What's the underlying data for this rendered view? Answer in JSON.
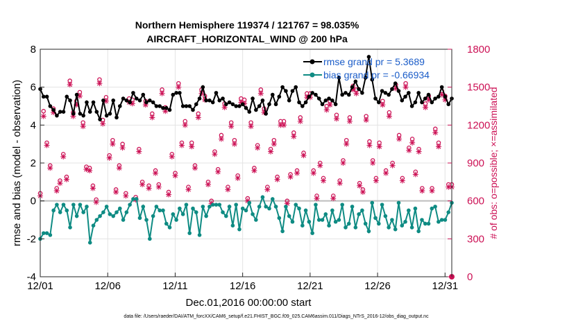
{
  "chart_data": {
    "type": "line",
    "title": "Northern Hemisphere 119374 / 121767 = 98.035%",
    "subtitle": "AIRCRAFT_HORIZONTAL_WIND @ 200 hPa",
    "xlabel": "Dec.01,2016 00:00:00 start",
    "ylabel": "rmse and bias (model - observation)",
    "ylabel_right": "# of obs: o=possible; ×=assimilated",
    "xlim": [
      1,
      31.5
    ],
    "ylim": [
      -4,
      8
    ],
    "ylim_right": [
      0,
      1800
    ],
    "x_ticks": [
      "12/01",
      "12/06",
      "12/11",
      "12/16",
      "12/21",
      "12/26",
      "12/31"
    ],
    "y_ticks": [
      "-4",
      "-2",
      "0",
      "2",
      "4",
      "6",
      "8"
    ],
    "y_ticks_right": [
      "0",
      "300",
      "600",
      "900",
      "1200",
      "1500",
      "1800"
    ],
    "grid": true,
    "legend_position": "top-right",
    "series": [
      {
        "name": "rmse grand pr = 5.3689",
        "color": "#000000",
        "values": [
          5.9,
          5.5,
          5.5,
          5.0,
          4.8,
          4.5,
          4.7,
          4.7,
          5.5,
          5.3,
          4.6,
          5.6,
          4.6,
          4.5,
          5.2,
          4.7,
          5.2,
          4.7,
          4.3,
          5.3,
          4.5,
          4.6,
          5.3,
          4.4,
          5.0,
          5.4,
          5.3,
          5.2,
          5.7,
          5.4,
          5.3,
          5.6,
          5.2,
          5.3,
          5.2,
          5.0,
          5.0,
          4.9,
          4.9,
          4.8,
          5.6,
          5.7,
          5.7,
          5.0,
          5.0,
          5.0,
          4.8,
          5.1,
          5.4,
          6.0,
          5.3,
          5.3,
          5.2,
          5.7,
          5.3,
          5.4,
          5.1,
          5.2,
          5.1,
          5.0,
          5.0,
          5.1,
          4.9,
          4.7,
          5.4,
          4.8,
          5.0,
          5.3,
          4.6,
          5.1,
          5.6,
          5.1,
          5.5,
          6.0,
          5.8,
          5.3,
          5.8,
          6.0,
          5.2,
          5.0,
          5.2,
          5.5,
          5.7,
          5.6,
          5.4,
          5.1,
          5.3,
          5.4,
          5.3,
          5.1,
          6.5,
          5.6,
          5.7,
          5.6,
          6.0,
          6.3,
          5.9,
          5.7,
          6.5,
          7.6,
          6.4,
          5.4,
          5.2,
          5.8,
          5.7,
          5.6,
          5.9,
          6.2,
          5.8,
          5.3,
          5.5,
          5.7,
          5.0,
          5.2,
          5.7,
          5.2,
          5.4,
          5.6,
          5.2,
          5.4,
          5.5,
          6.0,
          5.5,
          5.1,
          5.4
        ]
      },
      {
        "name": "bias grand pr = -0.66934",
        "color": "#0e8b83",
        "values": [
          -2.0,
          -1.7,
          -1.7,
          -1.8,
          -0.5,
          -0.2,
          -0.6,
          -0.2,
          -0.5,
          -1.4,
          -0.2,
          -0.8,
          -0.2,
          -0.6,
          -0.3,
          -2.2,
          -1.3,
          -1.0,
          -0.8,
          -0.6,
          -0.3,
          -0.7,
          -0.8,
          -0.6,
          -0.4,
          -1.0,
          -0.6,
          -0.2,
          0.1,
          0.1,
          -0.9,
          -0.3,
          -1.0,
          -2.0,
          -0.8,
          -0.3,
          -0.5,
          -0.5,
          -1.2,
          -1.4,
          -0.7,
          -1.0,
          -0.4,
          -0.7,
          -0.2,
          -1.7,
          -0.4,
          -0.6,
          -1.8,
          -0.3,
          -0.8,
          -0.3,
          -0.2,
          -0.2,
          -0.2,
          -0.6,
          -0.8,
          -0.3,
          -1.3,
          -0.2,
          -1.5,
          -0.4,
          -0.5,
          -0.1,
          -0.7,
          -1.0,
          -0.3,
          0.2,
          -0.3,
          -0.4,
          0.1,
          -0.3,
          -0.9,
          -1.6,
          -0.3,
          -0.8,
          -1.1,
          -0.2,
          -0.4,
          -1.3,
          -0.5,
          -1.1,
          -1.7,
          -0.2,
          -1.0,
          -1.0,
          -0.7,
          -1.3,
          -0.5,
          -1.1,
          -1.0,
          -0.2,
          -1.4,
          -1.2,
          -0.3,
          -1.4,
          -0.7,
          -0.5,
          -1.2,
          -1.6,
          -0.1,
          -0.9,
          -1.2,
          -0.2,
          -0.8,
          -1.4,
          -1.0,
          -1.5,
          -0.1,
          -1.3,
          -1.1,
          -0.5,
          -1.4,
          -0.4,
          -1.6,
          -1.0,
          -1.2,
          -1.2,
          -0.4,
          -0.3,
          -1.1,
          -1.0,
          -1.0,
          -0.6,
          -0.1
        ]
      },
      {
        "name": "obs possible (o)",
        "color": "#cc1155",
        "values": [
          660,
          1310,
          1060,
          880,
          1330,
          700,
          760,
          970,
          790,
          1550,
          1300,
          1390,
          1460,
          1220,
          870,
          860,
          720,
          610,
          1560,
          1240,
          1420,
          960,
          1080,
          690,
          880,
          1050,
          660,
          1410,
          1400,
          630,
          1010,
          750,
          1390,
          720,
          1290,
          840,
          730,
          1480,
          1340,
          670,
          970,
          820,
          1530,
          1060,
          1230,
          710,
          1060,
          880,
          1290,
          1480,
          1430,
          750,
          600,
          990,
          850,
          1120,
          1370,
          710,
          1220,
          1080,
          800,
          1410,
          1400,
          620,
          1220,
          860,
          1040,
          1480,
          1330,
          710,
          1010,
          1080,
          790,
          1230,
          1230,
          600,
          810,
          1140,
          840,
          1260,
          980,
          1450,
          1450,
          840,
          640,
          900,
          780,
          1350,
          1390,
          640,
          1280,
          760,
          920,
          1080,
          1260,
          1510,
          1480,
          740,
          690,
          1270,
          1070,
          920,
          780,
          1060,
          1390,
          840,
          1300,
          900,
          1520,
          1120,
          780,
          1530,
          1020,
          1090,
          830,
          1010,
          700,
          1370,
          1430,
          700,
          1170,
          1060,
          1470,
          1430,
          730,
          730
        ]
      },
      {
        "name": "obs assimilated (×)",
        "color": "#cc1155",
        "values": [
          640,
          1270,
          1040,
          860,
          1300,
          680,
          740,
          950,
          770,
          1520,
          1270,
          1360,
          1430,
          1190,
          850,
          840,
          700,
          590,
          1530,
          1210,
          1390,
          940,
          1050,
          670,
          860,
          1020,
          640,
          1380,
          1370,
          610,
          990,
          730,
          1360,
          700,
          1260,
          820,
          710,
          1450,
          1310,
          650,
          950,
          800,
          1500,
          1040,
          1200,
          690,
          1030,
          860,
          1260,
          1450,
          1400,
          730,
          580,
          970,
          830,
          1090,
          1340,
          690,
          1190,
          1050,
          780,
          1380,
          1370,
          600,
          1190,
          840,
          1020,
          1450,
          1300,
          690,
          990,
          1050,
          770,
          1200,
          1200,
          580,
          790,
          1110,
          820,
          1230,
          960,
          1420,
          1420,
          820,
          620,
          880,
          760,
          1320,
          1360,
          620,
          1250,
          740,
          900,
          1050,
          1230,
          1480,
          1450,
          720,
          670,
          1240,
          1040,
          900,
          760,
          1030,
          1360,
          820,
          1270,
          880,
          1490,
          1090,
          760,
          1500,
          1000,
          1060,
          810,
          990,
          680,
          1340,
          1400,
          680,
          1140,
          1030,
          1440,
          1400,
          710,
          710
        ]
      }
    ]
  },
  "footer": "data file: /Users/raeder/DAI/ATM_forcXX/CAM6_setup/f.e21.FHIST_BGC.f09_025.CAM6assim.011/Diags_NTrS_2016-12/obs_diag_output.nc"
}
